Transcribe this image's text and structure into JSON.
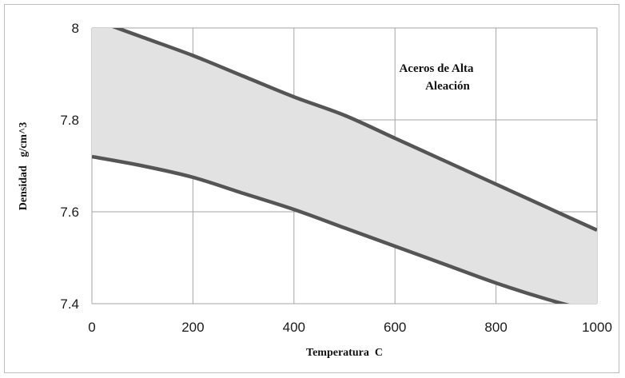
{
  "chart_data": {
    "type": "area",
    "title": "",
    "xlabel": "Temperatura  C",
    "ylabel": "Densidad   g/cm^3",
    "xlim": [
      0,
      1000
    ],
    "ylim": [
      7.4,
      8.0
    ],
    "x_ticks": [
      "0",
      "200",
      "400",
      "600",
      "800",
      "1000"
    ],
    "y_ticks": [
      "7.4",
      "7.6",
      "7.8",
      "8"
    ],
    "grid": true,
    "annotation": [
      "Aceros de Alta",
      "Aleación"
    ],
    "series": [
      {
        "role": "upper",
        "x": [
          0,
          100,
          200,
          300,
          400,
          500,
          600,
          700,
          800,
          900,
          1000
        ],
        "y": [
          8.02,
          7.98,
          7.94,
          7.895,
          7.85,
          7.81,
          7.76,
          7.71,
          7.66,
          7.61,
          7.56
        ]
      },
      {
        "role": "lower",
        "x": [
          0,
          100,
          200,
          300,
          400,
          500,
          600,
          700,
          800,
          900,
          1000
        ],
        "y": [
          7.72,
          7.7,
          7.675,
          7.64,
          7.605,
          7.565,
          7.525,
          7.485,
          7.445,
          7.41,
          7.38
        ]
      }
    ],
    "colors": {
      "line": "#555555",
      "fill": "#e2e2e2",
      "grid": "#a6a6a6"
    }
  }
}
